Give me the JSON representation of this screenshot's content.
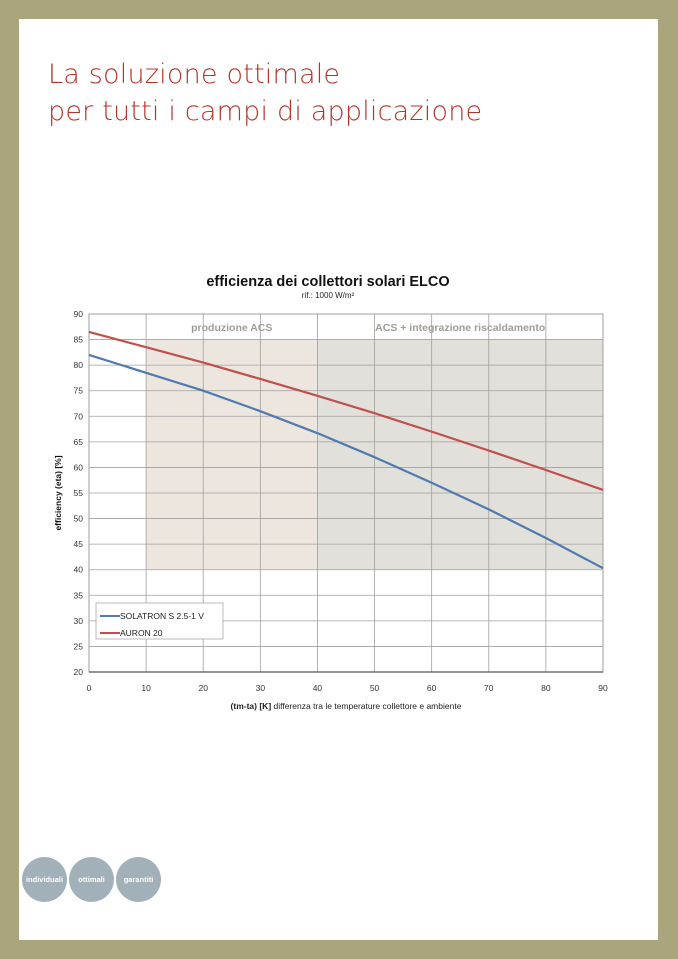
{
  "page": {
    "title_line1": "La soluzione ottimale",
    "title_line2": "per tutti i campi di applicazione",
    "badges": [
      "individuali",
      "ottimali",
      "garantiti"
    ],
    "colors": {
      "frame": "#a9a67d",
      "title": "#b3342c",
      "badge": "#a2b0b9"
    }
  },
  "chart_data": {
    "type": "line",
    "title": "efficienza dei collettori solari ELCO",
    "subtitle": "rif.: 1000 W/m²",
    "xlabel_bold": "(tm-ta) [K]",
    "xlabel": "differenza tra  le temperature collettore e ambiente",
    "ylabel": "efficiency (eta) [%]",
    "xlim": [
      0,
      90
    ],
    "ylim": [
      20,
      90
    ],
    "xticks": [
      0,
      10,
      20,
      30,
      40,
      50,
      60,
      70,
      80,
      90
    ],
    "yticks": [
      20,
      25,
      30,
      35,
      40,
      45,
      50,
      55,
      60,
      65,
      70,
      75,
      80,
      85,
      90
    ],
    "grid": true,
    "legend": "bottom-left",
    "regions": [
      {
        "label": "produzione ACS",
        "x": [
          10,
          40
        ],
        "y": [
          40,
          85
        ],
        "color": "#ece6df"
      },
      {
        "label": "ACS + integrazione riscaldamento",
        "x": [
          40,
          90
        ],
        "y": [
          40,
          85
        ],
        "color": "#e2e0da"
      }
    ],
    "x": [
      0,
      10,
      20,
      30,
      40,
      50,
      60,
      70,
      80,
      90
    ],
    "series": [
      {
        "name": "SOLATRON S 2.5-1 V",
        "color": "#4f7bb0",
        "values": [
          82,
          78.5,
          75,
          71,
          66.7,
          62,
          57,
          51.8,
          46.2,
          40.3
        ]
      },
      {
        "name": "AURON 20",
        "color": "#c0504d",
        "values": [
          86.5,
          83.5,
          80.5,
          77.3,
          74,
          70.6,
          67,
          63.3,
          59.5,
          55.6
        ]
      }
    ]
  }
}
